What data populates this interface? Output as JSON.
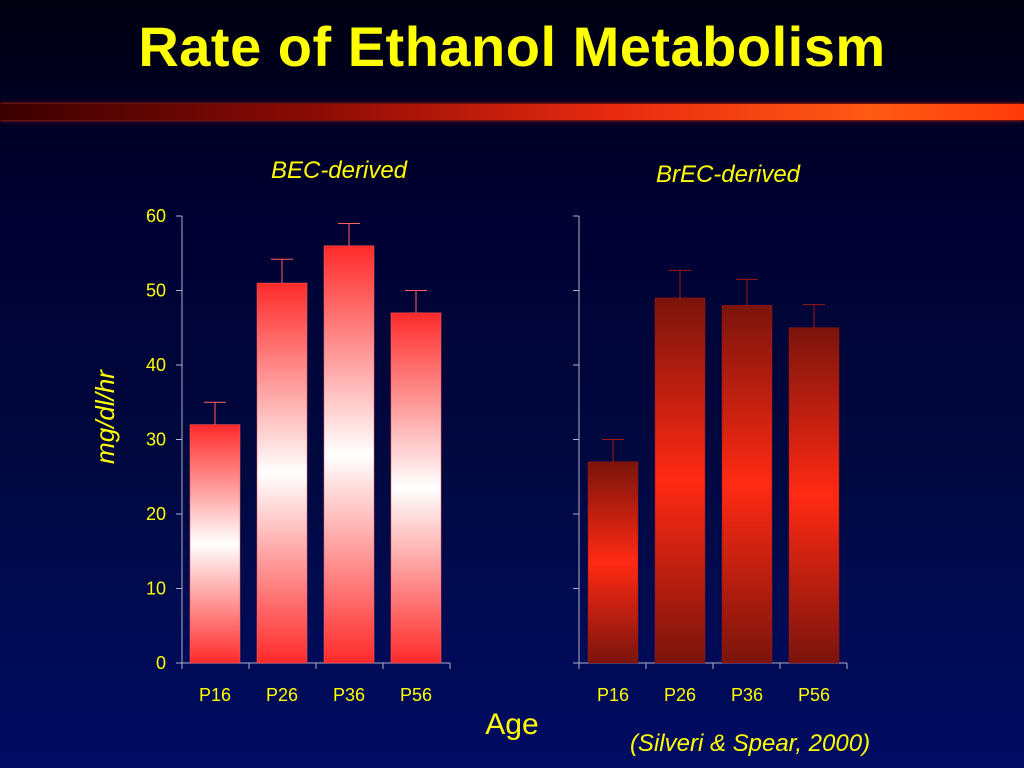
{
  "slide": {
    "title": "Rate of Ethanol Metabolism",
    "citation": "(Silveri & Spear, 2000)"
  },
  "colors": {
    "text": "#ffff00",
    "axis": "#b0b0c8",
    "left_bar_edge": "#ff2a2a",
    "left_bar_center": "#ffffff",
    "right_bar_edge": "#7a140c",
    "right_bar_center": "#ff2a14",
    "title_rule": "#ff4010"
  },
  "chart_data": [
    {
      "type": "bar",
      "title": "BEC-derived",
      "ylabel": "mg/dl/hr",
      "xlabel": "Age",
      "categories": [
        "P16",
        "P26",
        "P36",
        "P56"
      ],
      "values": [
        32,
        51,
        56,
        47
      ],
      "error_upper": [
        3,
        3.2,
        3,
        3
      ],
      "ylim": [
        0,
        60
      ],
      "yticks": [
        "0",
        "10",
        "20",
        "30",
        "40",
        "50",
        "60"
      ]
    },
    {
      "type": "bar",
      "title": "BrEC-derived",
      "categories": [
        "P16",
        "P26",
        "P36",
        "P56"
      ],
      "values": [
        27,
        49,
        48,
        45
      ],
      "error_upper": [
        3,
        3.7,
        3.5,
        3.1
      ],
      "ylim": [
        0,
        60
      ]
    }
  ]
}
